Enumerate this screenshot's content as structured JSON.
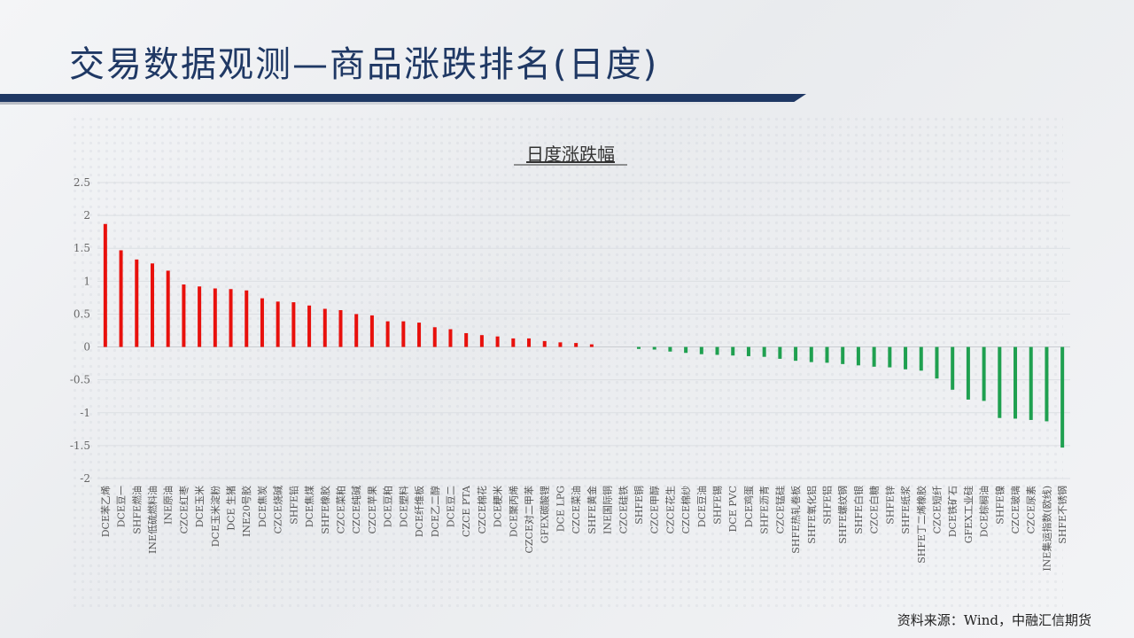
{
  "page": {
    "title": "交易数据观测—商品涨跌排名(日度)",
    "source": "资料来源：Wind，中融汇信期货"
  },
  "chart_data": {
    "type": "bar",
    "title": "日度涨跌幅",
    "xlabel": "",
    "ylabel": "",
    "ylim": [
      -2,
      2.5
    ],
    "yticks": [
      2.5,
      2,
      1.5,
      1,
      0.5,
      0,
      -0.5,
      -1,
      -1.5,
      -2
    ],
    "ytick_labels": [
      "2.5",
      "2",
      "1.5",
      "1",
      "0.5",
      "0",
      "-0.5",
      "-1",
      "-1.5",
      "-2"
    ],
    "grid": true,
    "legend": "none",
    "colors": {
      "up": "#e8100c",
      "down": "#1fa050"
    },
    "categories": [
      "DCE苯乙烯",
      "DCE豆一",
      "SHFE燃油",
      "INE低硫燃料油",
      "INE原油",
      "CZCE红枣",
      "DCE玉米",
      "DCE玉米淀粉",
      "DCE 生猪",
      "INE20号胶",
      "DCE焦炭",
      "CZCE烧碱",
      "SHFE铅",
      "DCE焦煤",
      "SHFE橡胶",
      "CZCE菜粕",
      "CZCE纯碱",
      "CZCE苹果",
      "DCE豆粕",
      "DCE塑料",
      "DCE纤维板",
      "DCE乙二醇",
      "DCE豆二",
      "CZCE PTA",
      "CZCE棉花",
      "DCE粳米",
      "DCE聚丙烯",
      "CZCE对二甲苯",
      "GFEX碳酸锂",
      "DCE LPG",
      "CZCE菜油",
      "SHFE黄金",
      "INE国际铜",
      "CZCE硅铁",
      "SHFE铜",
      "CZCE甲醇",
      "CZCE花生",
      "CZCE棉纱",
      "DCE豆油",
      "SHFE锡",
      "DCE PVC",
      "DCE鸡蛋",
      "SHFE沥青",
      "CZCE锰硅",
      "SHFE热轧卷板",
      "SHFE氧化铝",
      "SHFE铝",
      "SHFE螺纹钢",
      "SHFE白银",
      "CZCE白糖",
      "SHFE锌",
      "SHFE纸浆",
      "SHFE丁二烯橡胶",
      "CZCE短纤",
      "DCE铁矿石",
      "GFEX工业硅",
      "DCE棕榈油",
      "SHFE镍",
      "CZCE玻璃",
      "CZCE尿素",
      "INE集运指数(欧线)",
      "SHFE不锈钢"
    ],
    "values": [
      1.87,
      1.47,
      1.33,
      1.27,
      1.16,
      0.95,
      0.92,
      0.89,
      0.88,
      0.86,
      0.74,
      0.69,
      0.68,
      0.63,
      0.58,
      0.56,
      0.5,
      0.48,
      0.39,
      0.39,
      0.37,
      0.3,
      0.27,
      0.21,
      0.18,
      0.16,
      0.13,
      0.13,
      0.09,
      0.07,
      0.06,
      0.04,
      0.0,
      0.0,
      -0.03,
      -0.04,
      -0.07,
      -0.09,
      -0.11,
      -0.12,
      -0.13,
      -0.14,
      -0.15,
      -0.18,
      -0.21,
      -0.23,
      -0.24,
      -0.26,
      -0.28,
      -0.3,
      -0.31,
      -0.34,
      -0.36,
      -0.48,
      -0.65,
      -0.8,
      -0.82,
      -1.08,
      -1.09,
      -1.11,
      -1.13,
      -1.53
    ]
  }
}
